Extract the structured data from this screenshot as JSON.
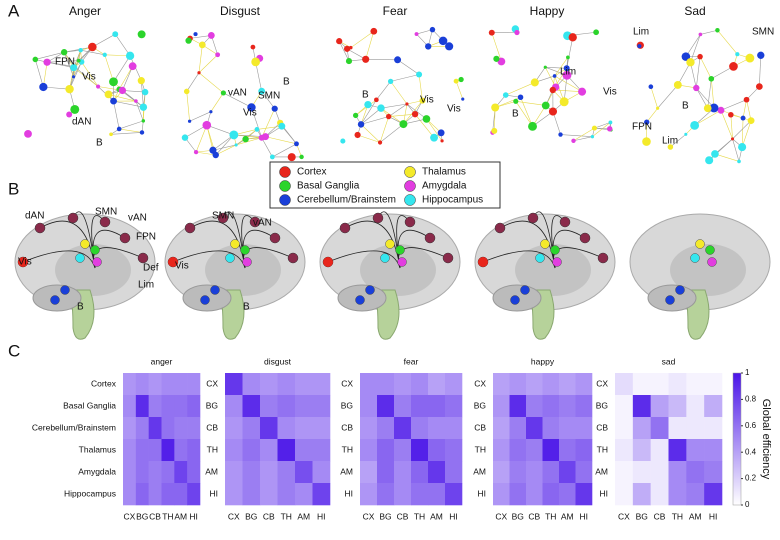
{
  "panel_labels": [
    "A",
    "B",
    "C"
  ],
  "panel_a": {
    "networks": [
      {
        "title": "Anger",
        "labels": [
          "FPN",
          "Vis",
          "dAN",
          "B"
        ]
      },
      {
        "title": "Disgust",
        "labels": [
          "vAN",
          "SMN",
          "Vis",
          "B"
        ]
      },
      {
        "title": "Fear",
        "labels": [
          "B",
          "Vis",
          "Vis"
        ]
      },
      {
        "title": "Happy",
        "labels": [
          "Lim",
          "Vis",
          "B"
        ]
      },
      {
        "title": "Sad",
        "labels": [
          "Lim",
          "SMN",
          "B",
          "FPN",
          "Lim"
        ]
      }
    ]
  },
  "legend": [
    {
      "name": "Cortex",
      "color": "#e8261c"
    },
    {
      "name": "Thalamus",
      "color": "#f4ea2a"
    },
    {
      "name": "Basal Ganglia",
      "color": "#2bd42b"
    },
    {
      "name": "Amygdala",
      "color": "#e23de0"
    },
    {
      "name": "Cerebellum/Brainstem",
      "color": "#1a3fd8"
    },
    {
      "name": "Hippocampus",
      "color": "#35e6ee"
    }
  ],
  "panel_b": {
    "brains": [
      {
        "labels": [
          "dAN",
          "SMN",
          "vAN",
          "FPN",
          "Vis",
          "Def",
          "Lim",
          "B"
        ]
      },
      {
        "labels": [
          "SMN",
          "vAN",
          "Vis",
          "B"
        ]
      },
      {
        "labels": []
      },
      {
        "labels": []
      },
      {
        "labels": []
      }
    ]
  },
  "chart_data": [
    {
      "type": "heatmap",
      "title": "anger",
      "x": [
        "CX",
        "BG",
        "CB",
        "TH",
        "AM",
        "HI"
      ],
      "y": [
        "Cortex",
        "Basal Ganglia",
        "Cerebellum/Brainstem",
        "Thalamus",
        "Amygdala",
        "Hippocampus"
      ],
      "values": [
        [
          0.45,
          0.5,
          0.45,
          0.5,
          0.5,
          0.5
        ],
        [
          0.5,
          0.9,
          0.55,
          0.6,
          0.6,
          0.65
        ],
        [
          0.45,
          0.55,
          0.85,
          0.6,
          0.55,
          0.55
        ],
        [
          0.5,
          0.6,
          0.6,
          0.95,
          0.6,
          0.65
        ],
        [
          0.5,
          0.6,
          0.55,
          0.6,
          0.8,
          0.65
        ],
        [
          0.5,
          0.65,
          0.55,
          0.65,
          0.65,
          0.8
        ]
      ],
      "zlim": [
        0,
        1
      ],
      "colormap": [
        "#ffffff",
        "#4a14e8"
      ]
    },
    {
      "type": "heatmap",
      "title": "disgust",
      "x": [
        "CX",
        "BG",
        "CB",
        "TH",
        "AM",
        "HI"
      ],
      "y": [
        "CX",
        "BG",
        "CB",
        "TH",
        "AM",
        "HI"
      ],
      "values": [
        [
          0.85,
          0.5,
          0.45,
          0.5,
          0.45,
          0.45
        ],
        [
          0.5,
          0.9,
          0.55,
          0.6,
          0.55,
          0.55
        ],
        [
          0.45,
          0.55,
          0.85,
          0.5,
          0.45,
          0.45
        ],
        [
          0.5,
          0.6,
          0.5,
          0.95,
          0.55,
          0.55
        ],
        [
          0.45,
          0.55,
          0.45,
          0.55,
          0.75,
          0.5
        ],
        [
          0.45,
          0.55,
          0.45,
          0.55,
          0.5,
          0.8
        ]
      ],
      "zlim": [
        0,
        1
      ],
      "colormap": [
        "#ffffff",
        "#4a14e8"
      ]
    },
    {
      "type": "heatmap",
      "title": "fear",
      "x": [
        "CX",
        "BG",
        "CB",
        "TH",
        "AM",
        "HI"
      ],
      "y": [
        "CX",
        "BG",
        "CB",
        "TH",
        "AM",
        "HI"
      ],
      "values": [
        [
          0.5,
          0.5,
          0.45,
          0.5,
          0.4,
          0.45
        ],
        [
          0.5,
          0.9,
          0.55,
          0.65,
          0.65,
          0.6
        ],
        [
          0.45,
          0.55,
          0.85,
          0.55,
          0.5,
          0.5
        ],
        [
          0.5,
          0.65,
          0.55,
          0.95,
          0.65,
          0.6
        ],
        [
          0.4,
          0.65,
          0.5,
          0.65,
          0.85,
          0.6
        ],
        [
          0.45,
          0.6,
          0.5,
          0.6,
          0.6,
          0.8
        ]
      ],
      "zlim": [
        0,
        1
      ],
      "colormap": [
        "#ffffff",
        "#4a14e8"
      ]
    },
    {
      "type": "heatmap",
      "title": "happy",
      "x": [
        "CX",
        "BG",
        "CB",
        "TH",
        "AM",
        "HI"
      ],
      "y": [
        "CX",
        "BG",
        "CB",
        "TH",
        "AM",
        "HI"
      ],
      "values": [
        [
          0.4,
          0.45,
          0.4,
          0.45,
          0.4,
          0.45
        ],
        [
          0.45,
          0.9,
          0.55,
          0.6,
          0.55,
          0.6
        ],
        [
          0.4,
          0.55,
          0.85,
          0.55,
          0.5,
          0.5
        ],
        [
          0.45,
          0.6,
          0.55,
          0.95,
          0.6,
          0.65
        ],
        [
          0.4,
          0.55,
          0.5,
          0.6,
          0.8,
          0.6
        ],
        [
          0.45,
          0.6,
          0.5,
          0.65,
          0.6,
          0.85
        ]
      ],
      "zlim": [
        0,
        1
      ],
      "colormap": [
        "#ffffff",
        "#4a14e8"
      ]
    },
    {
      "type": "heatmap",
      "title": "sad",
      "x": [
        "CX",
        "BG",
        "CB",
        "TH",
        "AM",
        "HI"
      ],
      "y": [
        "CX",
        "BG",
        "CB",
        "TH",
        "AM",
        "HI"
      ],
      "values": [
        [
          0.15,
          0.05,
          0.05,
          0.1,
          0.05,
          0.05
        ],
        [
          0.05,
          0.9,
          0.4,
          0.3,
          0.1,
          0.35
        ],
        [
          0.05,
          0.4,
          0.6,
          0.1,
          0.1,
          0.1
        ],
        [
          0.1,
          0.3,
          0.1,
          0.9,
          0.5,
          0.5
        ],
        [
          0.05,
          0.1,
          0.1,
          0.5,
          0.6,
          0.55
        ],
        [
          0.05,
          0.35,
          0.1,
          0.5,
          0.55,
          0.85
        ]
      ],
      "zlim": [
        0,
        1
      ],
      "colormap": [
        "#ffffff",
        "#4a14e8"
      ],
      "colorbar": {
        "label": "Global efficiency",
        "ticks": [
          0,
          0.2,
          0.4,
          0.6,
          0.8,
          1
        ]
      }
    }
  ]
}
